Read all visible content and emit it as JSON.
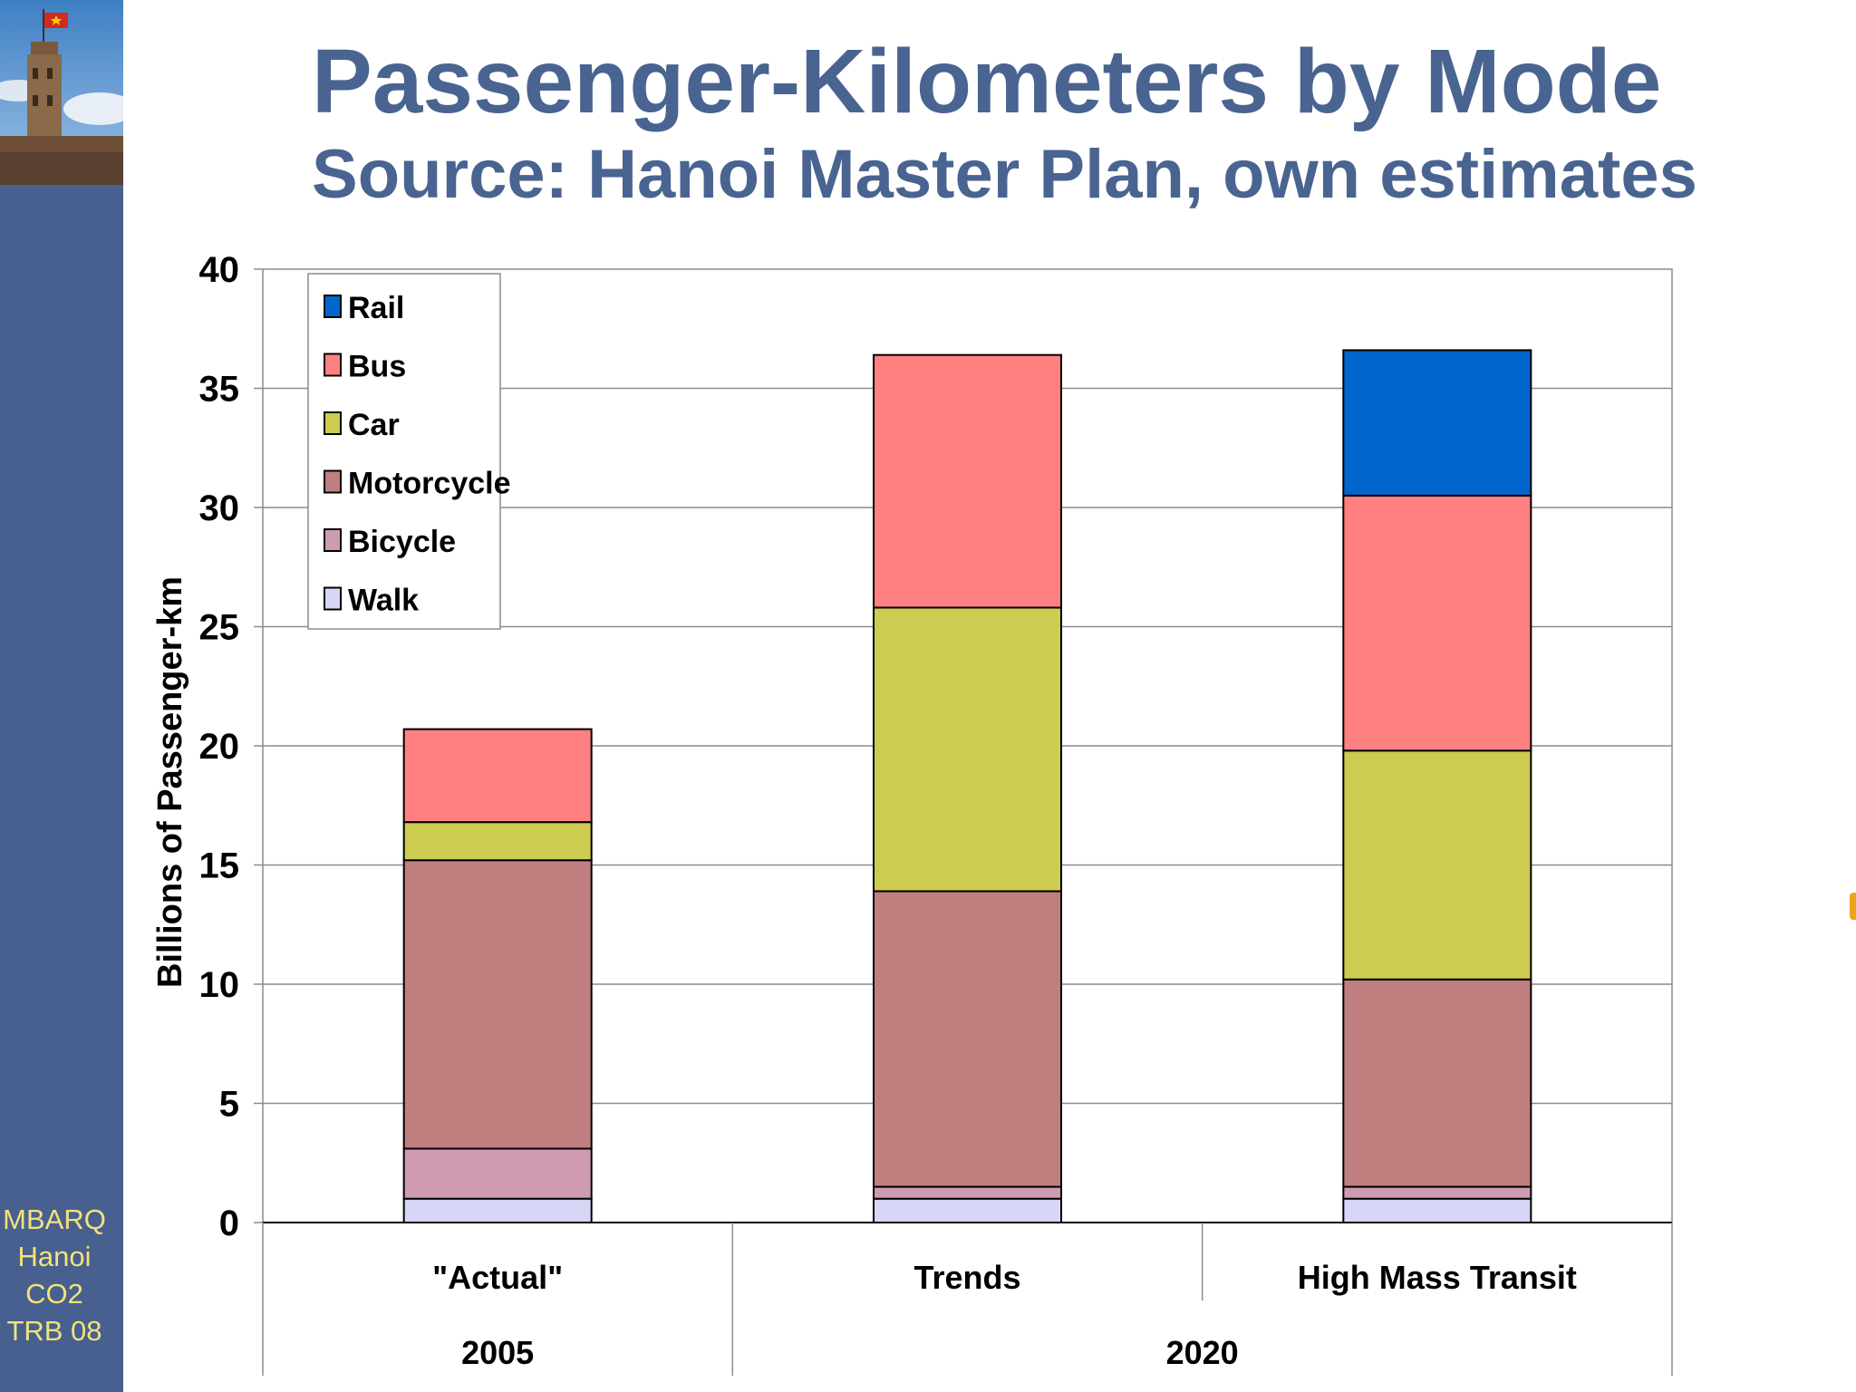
{
  "slide": {
    "title": "Passenger-Kilometers by Mode",
    "subtitle": "Source: Hanoi Master Plan, own estimates",
    "sidebar_label": [
      "MBARQ",
      "Hanoi",
      "CO2",
      "TRB 08"
    ]
  },
  "colors": {
    "sidebar": "#47608f",
    "title": "#4a6491",
    "sidebar_text": "#f2e27a"
  },
  "chart_data": {
    "type": "bar",
    "stacked": true,
    "title": "",
    "xlabel": "",
    "ylabel": "Billions of Passenger-km",
    "ylim": [
      0,
      40
    ],
    "yticks": [
      0,
      5,
      10,
      15,
      20,
      25,
      30,
      35,
      40
    ],
    "grid": true,
    "legend_position": "top-left",
    "categories": [
      "\"Actual\"",
      "Trends",
      "High Mass Transit"
    ],
    "groups": [
      {
        "label": "2005",
        "categories": [
          "\"Actual\""
        ]
      },
      {
        "label": "2020",
        "categories": [
          "Trends",
          "High Mass Transit"
        ]
      }
    ],
    "series": [
      {
        "name": "Walk",
        "color": "#d8d6f7",
        "values": [
          1.0,
          1.0,
          1.0
        ]
      },
      {
        "name": "Bicycle",
        "color": "#cf9bb3",
        "values": [
          2.1,
          0.5,
          0.5
        ]
      },
      {
        "name": "Motorcycle",
        "color": "#c07f7f",
        "values": [
          12.1,
          12.4,
          8.7
        ]
      },
      {
        "name": "Car",
        "color": "#cccc50",
        "values": [
          1.6,
          11.9,
          9.6
        ]
      },
      {
        "name": "Bus",
        "color": "#ff8080",
        "values": [
          3.9,
          10.6,
          10.7
        ]
      },
      {
        "name": "Rail",
        "color": "#0066cc",
        "values": [
          0,
          0,
          6.1
        ]
      }
    ]
  }
}
